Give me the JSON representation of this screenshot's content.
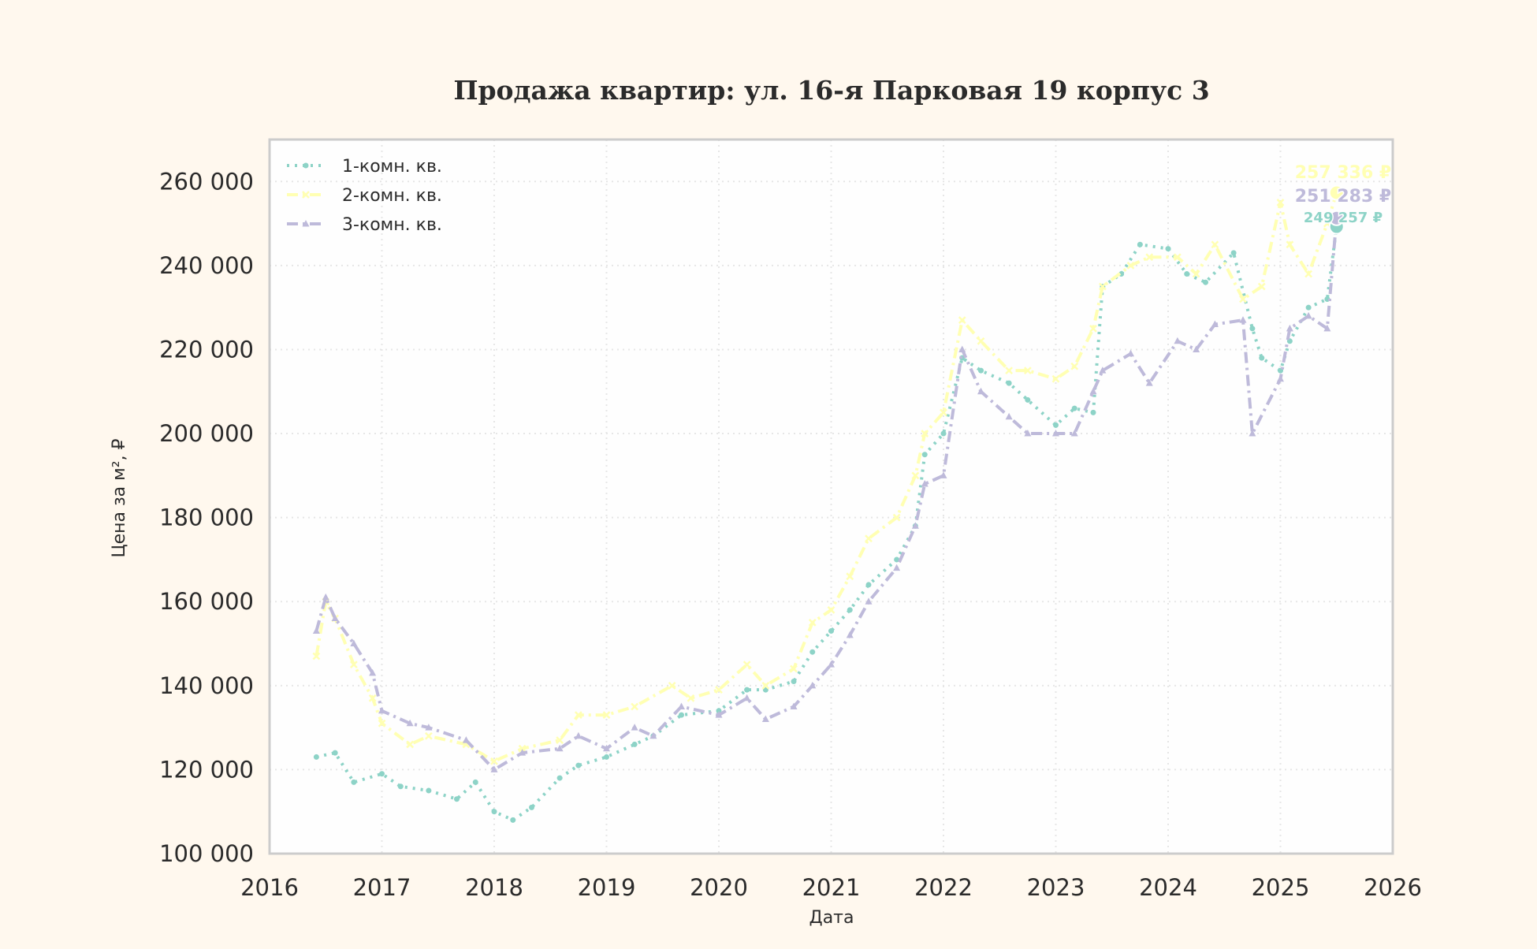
{
  "chart_data": {
    "type": "line",
    "title": "Продажа квартир: ул. 16-я Парковая 19 корпус 3",
    "xlabel": "Дата",
    "ylabel": "Цена за м², ₽",
    "xlim": [
      "2016-01",
      "2026-01"
    ],
    "ylim": [
      100000,
      270000
    ],
    "x_ticks": [
      "2016",
      "2017",
      "2018",
      "2019",
      "2020",
      "2021",
      "2022",
      "2023",
      "2024",
      "2025",
      "2026"
    ],
    "y_ticks": [
      "100 000",
      "120 000",
      "140 000",
      "160 000",
      "180 000",
      "200 000",
      "220 000",
      "240 000",
      "260 000"
    ],
    "grid": true,
    "legend_position": "top-left",
    "series": [
      {
        "name": "1-комн. кв.",
        "color": "#8dd3c7",
        "style": "dotted",
        "marker": "circle",
        "last_label": "249 257 ₽",
        "x": [
          "2016-06",
          "2016-08",
          "2016-10",
          "2017-01",
          "2017-03",
          "2017-06",
          "2017-09",
          "2017-11",
          "2018-01",
          "2018-03",
          "2018-05",
          "2018-08",
          "2018-10",
          "2019-01",
          "2019-04",
          "2019-06",
          "2019-09",
          "2020-01",
          "2020-04",
          "2020-06",
          "2020-09",
          "2020-11",
          "2021-01",
          "2021-03",
          "2021-05",
          "2021-08",
          "2021-10",
          "2021-11",
          "2022-01",
          "2022-03",
          "2022-05",
          "2022-08",
          "2022-10",
          "2023-01",
          "2023-03",
          "2023-05",
          "2023-06",
          "2023-08",
          "2023-10",
          "2024-01",
          "2024-03",
          "2024-05",
          "2024-08",
          "2024-10",
          "2024-11",
          "2025-01",
          "2025-02",
          "2025-04",
          "2025-06",
          "2025-07"
        ],
        "y": [
          123000,
          124000,
          117000,
          119000,
          116000,
          115000,
          113000,
          117000,
          110000,
          108000,
          111000,
          118000,
          121000,
          123000,
          126000,
          128000,
          133000,
          134000,
          139000,
          139000,
          141000,
          148000,
          153000,
          158000,
          164000,
          170000,
          178000,
          195000,
          200000,
          218000,
          215000,
          212000,
          208000,
          202000,
          206000,
          205000,
          235000,
          238000,
          245000,
          244000,
          238000,
          236000,
          243000,
          225000,
          218000,
          215000,
          222000,
          230000,
          232000,
          249257
        ]
      },
      {
        "name": "2-комн. кв.",
        "color": "#ffffb3",
        "style": "dashdot",
        "marker": "x",
        "last_label": "257 336 ₽",
        "x": [
          "2016-06",
          "2016-07",
          "2016-08",
          "2016-10",
          "2016-12",
          "2017-01",
          "2017-04",
          "2017-06",
          "2017-10",
          "2018-01",
          "2018-04",
          "2018-08",
          "2018-10",
          "2019-01",
          "2019-04",
          "2019-08",
          "2019-10",
          "2020-01",
          "2020-04",
          "2020-06",
          "2020-09",
          "2020-11",
          "2021-01",
          "2021-03",
          "2021-05",
          "2021-08",
          "2021-10",
          "2021-11",
          "2022-01",
          "2022-03",
          "2022-05",
          "2022-08",
          "2022-10",
          "2023-01",
          "2023-03",
          "2023-05",
          "2023-06",
          "2023-09",
          "2023-11",
          "2024-02",
          "2024-04",
          "2024-06",
          "2024-09",
          "2024-11",
          "2025-01",
          "2025-02",
          "2025-04",
          "2025-06",
          "2025-07"
        ],
        "y": [
          147000,
          160000,
          156000,
          145000,
          137000,
          131000,
          126000,
          128000,
          126000,
          122000,
          125000,
          127000,
          133000,
          133000,
          135000,
          140000,
          137000,
          139000,
          145000,
          140000,
          144000,
          155000,
          158000,
          166000,
          175000,
          180000,
          190000,
          200000,
          205000,
          227000,
          222000,
          215000,
          215000,
          213000,
          216000,
          225000,
          235000,
          240000,
          242000,
          242000,
          238000,
          245000,
          232000,
          235000,
          255000,
          245000,
          238000,
          250000,
          257336
        ]
      },
      {
        "name": "3-комн. кв.",
        "color": "#bebada",
        "style": "dashdot",
        "marker": "triangle",
        "last_label": "251 283 ₽",
        "x": [
          "2016-06",
          "2016-07",
          "2016-08",
          "2016-10",
          "2016-12",
          "2017-01",
          "2017-04",
          "2017-06",
          "2017-10",
          "2018-01",
          "2018-04",
          "2018-08",
          "2018-10",
          "2019-01",
          "2019-04",
          "2019-06",
          "2019-09",
          "2020-01",
          "2020-04",
          "2020-06",
          "2020-09",
          "2020-11",
          "2021-01",
          "2021-03",
          "2021-05",
          "2021-08",
          "2021-10",
          "2021-11",
          "2022-01",
          "2022-03",
          "2022-05",
          "2022-08",
          "2022-10",
          "2023-01",
          "2023-03",
          "2023-05",
          "2023-06",
          "2023-09",
          "2023-11",
          "2024-02",
          "2024-04",
          "2024-06",
          "2024-09",
          "2024-10",
          "2025-01",
          "2025-02",
          "2025-04",
          "2025-06",
          "2025-07"
        ],
        "y": [
          153000,
          161000,
          156000,
          150000,
          143000,
          134000,
          131000,
          130000,
          127000,
          120000,
          124000,
          125000,
          128000,
          125000,
          130000,
          128000,
          135000,
          133000,
          137000,
          132000,
          135000,
          140000,
          145000,
          152000,
          160000,
          168000,
          178000,
          188000,
          190000,
          220000,
          210000,
          204000,
          200000,
          200000,
          200000,
          210000,
          215000,
          219000,
          212000,
          222000,
          220000,
          226000,
          227000,
          200000,
          213000,
          225000,
          228000,
          225000,
          251283
        ]
      }
    ]
  }
}
